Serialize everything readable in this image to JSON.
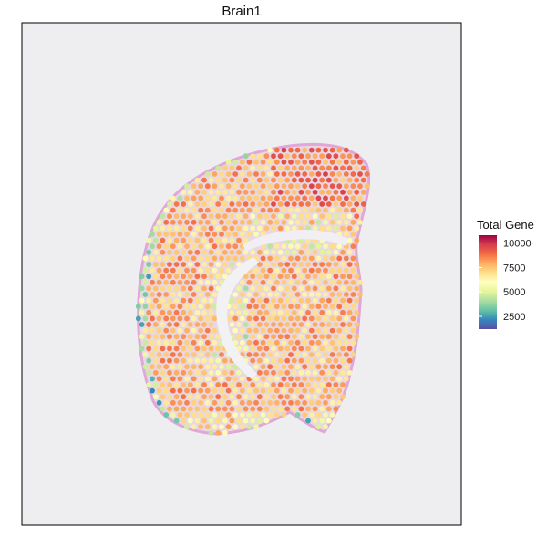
{
  "chart_data": {
    "type": "scatter",
    "title": "Brain1",
    "xlabel": "",
    "ylabel": "",
    "background": "tissue-image",
    "grid": false,
    "legend": {
      "title": "Total Gene",
      "position": "right",
      "ticks": [
        10000,
        7500,
        5000,
        2500
      ],
      "range": [
        1200,
        10800
      ],
      "colors": [
        "#9e0142",
        "#d53e4f",
        "#f46d43",
        "#fdae61",
        "#fee08b",
        "#ffffbf",
        "#e6f598",
        "#abdda4",
        "#66c2a5",
        "#3288bd",
        "#5e4fa2"
      ]
    },
    "series": [
      {
        "values_description": "spatial spot total gene counts, mostly 6000-9500, higher in cortex upper right, lower along edges",
        "typical_range": [
          1500,
          10500
        ]
      }
    ]
  }
}
